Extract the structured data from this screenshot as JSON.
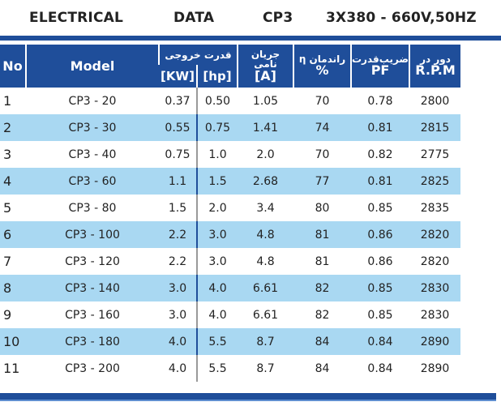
{
  "title": {
    "electrical": "ELECTRICAL",
    "data": "DATA",
    "model_code": "CP3",
    "spec": "3X380 - 660V,50HZ"
  },
  "header": {
    "no": "No",
    "model": "Model",
    "output_power": "قدرت خروجی",
    "kw": "[KW]",
    "hp": "[hp]",
    "current_fa": "جریان نامی",
    "current_unit": "[A]",
    "eta_fa": "η راندمان",
    "eta_unit": "%",
    "pf_fa": "ضریب‌قدرت",
    "pf": "PF",
    "rpm_fa": "دور در",
    "rpm": "R.P.M"
  },
  "rows": [
    {
      "no": "1",
      "model": "CP3 - 20",
      "kw": "0.37",
      "hp": "0.50",
      "a": "1.05",
      "eff": "70",
      "pf": "0.78",
      "rpm": "2800"
    },
    {
      "no": "2",
      "model": "CP3 - 30",
      "kw": "0.55",
      "hp": "0.75",
      "a": "1.41",
      "eff": "74",
      "pf": "0.81",
      "rpm": "2815"
    },
    {
      "no": "3",
      "model": "CP3 - 40",
      "kw": "0.75",
      "hp": "1.0",
      "a": "2.0",
      "eff": "70",
      "pf": "0.82",
      "rpm": "2775"
    },
    {
      "no": "4",
      "model": "CP3 - 60",
      "kw": "1.1",
      "hp": "1.5",
      "a": "2.68",
      "eff": "77",
      "pf": "0.81",
      "rpm": "2825"
    },
    {
      "no": "5",
      "model": "CP3 - 80",
      "kw": "1.5",
      "hp": "2.0",
      "a": "3.4",
      "eff": "80",
      "pf": "0.85",
      "rpm": "2835"
    },
    {
      "no": "6",
      "model": "CP3 - 100",
      "kw": "2.2",
      "hp": "3.0",
      "a": "4.8",
      "eff": "81",
      "pf": "0.86",
      "rpm": "2820"
    },
    {
      "no": "7",
      "model": "CP3 - 120",
      "kw": "2.2",
      "hp": "3.0",
      "a": "4.8",
      "eff": "81",
      "pf": "0.86",
      "rpm": "2820"
    },
    {
      "no": "8",
      "model": "CP3 - 140",
      "kw": "3.0",
      "hp": "4.0",
      "a": "6.61",
      "eff": "82",
      "pf": "0.85",
      "rpm": "2830"
    },
    {
      "no": "9",
      "model": "CP3 - 160",
      "kw": "3.0",
      "hp": "4.0",
      "a": "6.61",
      "eff": "82",
      "pf": "0.85",
      "rpm": "2830"
    },
    {
      "no": "10",
      "model": "CP3 - 180",
      "kw": "4.0",
      "hp": "5.5",
      "a": "8.7",
      "eff": "84",
      "pf": "0.84",
      "rpm": "2890"
    },
    {
      "no": "11",
      "model": "CP3 - 200",
      "kw": "4.0",
      "hp": "5.5",
      "a": "8.7",
      "eff": "84",
      "pf": "0.84",
      "rpm": "2890"
    }
  ],
  "colors": {
    "header_blue": "#1f4e9a",
    "row_alt": "#a9d8f2"
  }
}
